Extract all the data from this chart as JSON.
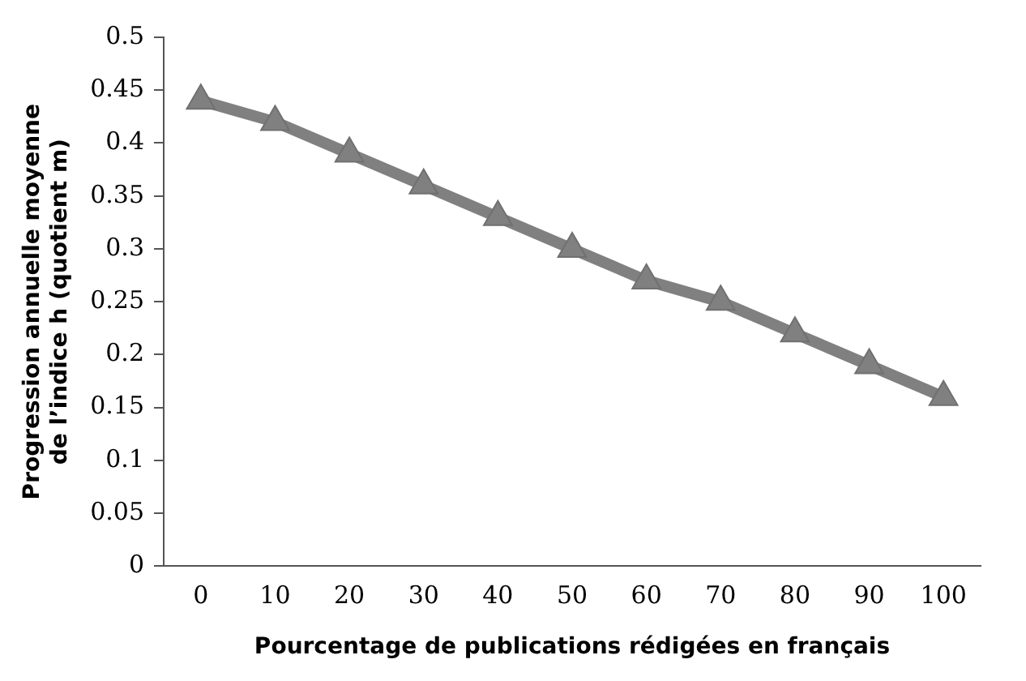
{
  "chart_data": {
    "type": "line",
    "xlabel": "Pourcentage de publications rédigées en français",
    "ylabel": "Progression annuelle moyenne de l’indice h (quotient m)",
    "categories": [
      "0",
      "10",
      "20",
      "30",
      "40",
      "50",
      "60",
      "70",
      "80",
      "90",
      "100"
    ],
    "series": [
      {
        "color": "#808080",
        "values": [
          0.44,
          0.42,
          0.39,
          0.36,
          0.33,
          0.3,
          0.27,
          0.25,
          0.22,
          0.19,
          0.16
        ]
      }
    ],
    "ylim": [
      0,
      0.5
    ],
    "yticks": [
      0,
      0.05,
      0.1,
      0.15,
      0.2,
      0.25,
      0.3,
      0.35,
      0.4,
      0.45,
      0.5
    ],
    "grid": false,
    "legend": false,
    "marker": "triangle",
    "line_style": "solid"
  }
}
